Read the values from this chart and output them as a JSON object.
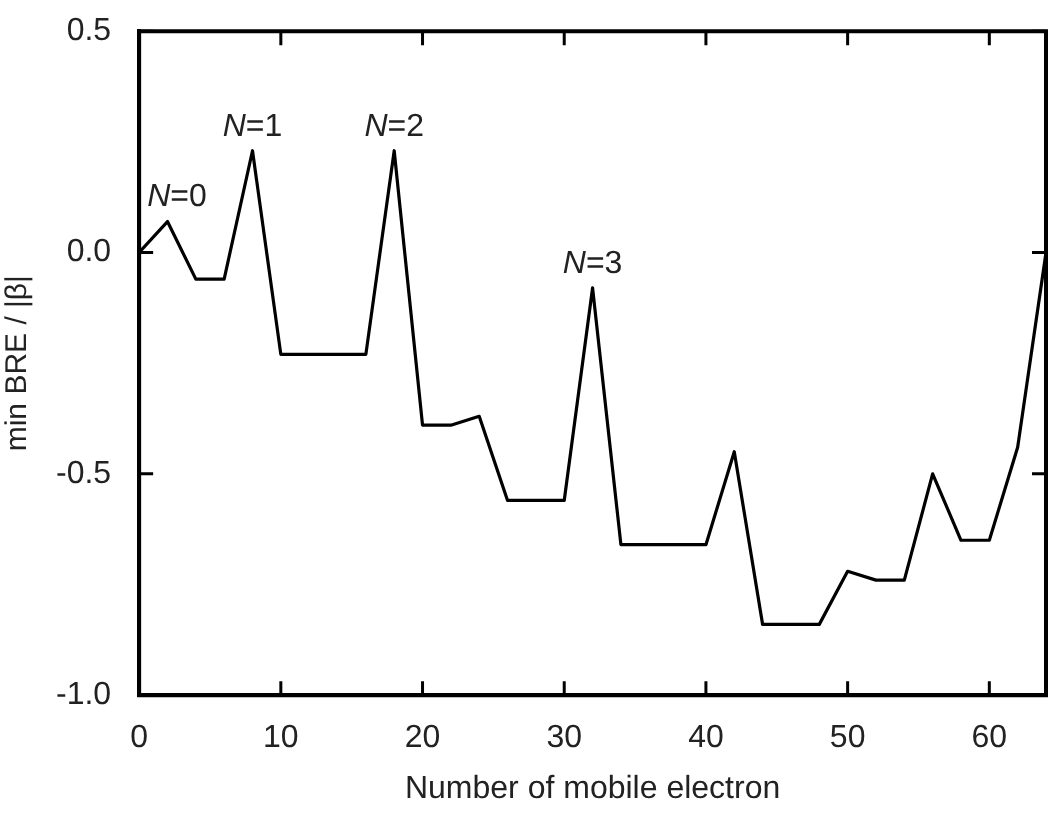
{
  "chart_data": {
    "type": "line",
    "xlabel": "Number of mobile electron",
    "ylabel": "min BRE / |β|",
    "x": [
      0,
      2,
      4,
      6,
      8,
      10,
      12,
      14,
      16,
      18,
      20,
      22,
      24,
      26,
      28,
      30,
      32,
      34,
      36,
      38,
      40,
      42,
      44,
      46,
      48,
      50,
      52,
      54,
      56,
      58,
      60,
      62,
      64
    ],
    "series": [
      {
        "color": "#000000",
        "values": [
          0.0,
          0.07,
          -0.06,
          -0.06,
          0.23,
          -0.23,
          -0.23,
          -0.23,
          -0.23,
          0.23,
          -0.39,
          -0.39,
          -0.37,
          -0.56,
          -0.56,
          -0.56,
          -0.08,
          -0.66,
          -0.66,
          -0.66,
          -0.66,
          -0.45,
          -0.84,
          -0.84,
          -0.84,
          -0.72,
          -0.74,
          -0.74,
          -0.5,
          -0.65,
          -0.65,
          -0.44,
          0.0
        ]
      }
    ],
    "xlim": [
      0,
      64
    ],
    "xticks": [
      0,
      10,
      20,
      30,
      40,
      50,
      60
    ],
    "ylim": [
      -1.0,
      0.5
    ],
    "yticks": [
      {
        "value": -1.0,
        "label": "-1.0"
      },
      {
        "value": -0.5,
        "label": "-0.5"
      },
      {
        "value": 0.0,
        "label": "0.0"
      },
      {
        "value": 0.5,
        "label": "0.5"
      }
    ],
    "annotations": [
      {
        "text": "N=0",
        "x": 2,
        "y": 0.07
      },
      {
        "text": "N=1",
        "x": 8,
        "y": 0.23
      },
      {
        "text": "N=2",
        "x": 18,
        "y": 0.23
      },
      {
        "text": "N=3",
        "x": 32,
        "y": -0.08
      }
    ],
    "grid": false,
    "legend": false,
    "marker": "none",
    "line_style": "solid"
  }
}
